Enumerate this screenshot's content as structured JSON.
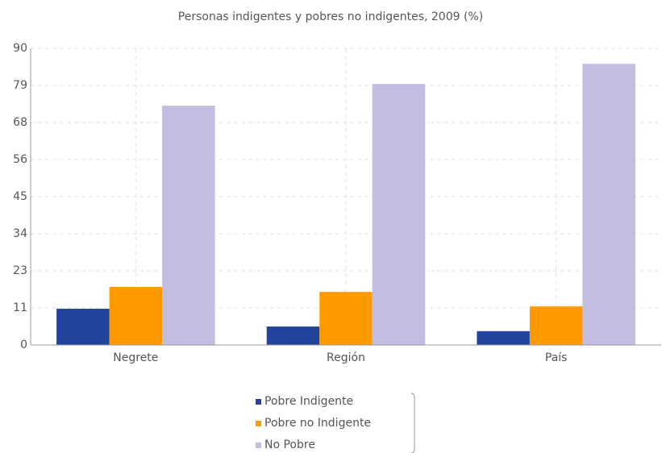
{
  "chart_data": {
    "type": "bar",
    "title": "Personas indigentes y pobres no indigentes, 2009 (%)",
    "categories": [
      "Negrete",
      "Región",
      "País"
    ],
    "series": [
      {
        "name": "Pobre Indigente",
        "color": "#22449c",
        "values": [
          11.0,
          5.6,
          4.2
        ]
      },
      {
        "name": "Pobre no Indigente",
        "color": "#ff9900",
        "values": [
          17.6,
          16.1,
          11.7
        ]
      },
      {
        "name": "No Pobre",
        "color": "#c3bde0",
        "values": [
          72.6,
          79.2,
          85.3
        ]
      }
    ],
    "ylim": [
      0,
      90
    ],
    "yticks": [
      0,
      {
        "value": 11.25,
        "label": "11"
      },
      {
        "value": 22.5,
        "label": "23"
      },
      {
        "value": 33.75,
        "label": "34"
      },
      45,
      {
        "value": 56.25,
        "label": "56"
      },
      {
        "value": 67.5,
        "label": "68"
      },
      {
        "value": 78.75,
        "label": "79"
      },
      90
    ],
    "grid": true,
    "legend": "bottom"
  }
}
